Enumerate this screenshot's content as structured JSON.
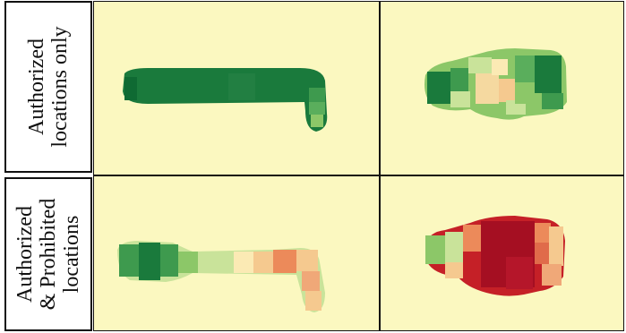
{
  "rows": [
    {
      "label_lines": [
        "Authorized",
        "locations only"
      ]
    },
    {
      "label_lines": [
        "Authorized",
        "& Prohibited",
        "locations"
      ]
    }
  ],
  "colors": {
    "background": "#fbf8c0",
    "dark_green": "#1a7a3c",
    "green": "#3e9a4e",
    "light_green": "#8cc768",
    "pale_green": "#c9e39a",
    "peach": "#f5c98f",
    "orange": "#ec8a5a",
    "red": "#c52027",
    "dark_red": "#a50f22"
  }
}
